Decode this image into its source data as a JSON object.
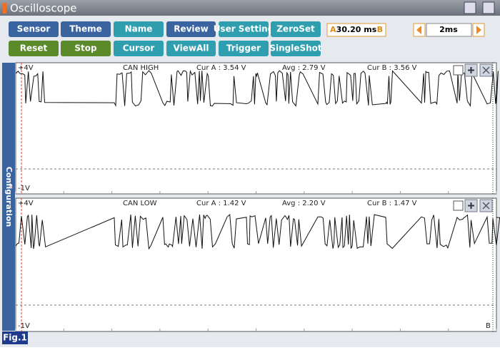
{
  "header": {
    "title": "Oscilloscope"
  },
  "toolbar": {
    "rows": [
      [
        "Sensor",
        "Theme",
        "Name",
        "Review",
        "User Setting",
        "ZeroSet"
      ],
      [
        "Reset",
        "Stop",
        "Cursor",
        "ViewAll",
        "Trigger",
        "SingleShot"
      ]
    ]
  },
  "cursor_box": {
    "a": "A",
    "value": "30.20 ms",
    "b": "B"
  },
  "timebase": "2ms",
  "side_tab": "Configuration",
  "channels": [
    {
      "top_label": "+4V",
      "name": "CAN HIGH",
      "cur_a": "Cur A : 3.54 V",
      "avg": "Avg : 2.79 V",
      "cur_b": "Cur B : 3.56 V",
      "bottom_label": "-1V"
    },
    {
      "top_label": "+4V",
      "name": "CAN LOW",
      "cur_a": "Cur A : 1.42 V",
      "avg": "Avg : 2.20 V",
      "cur_b": "Cur B : 1.47 V",
      "bottom_label": "-1V",
      "marker": "B"
    }
  ],
  "figure_label": "Fig.1"
}
